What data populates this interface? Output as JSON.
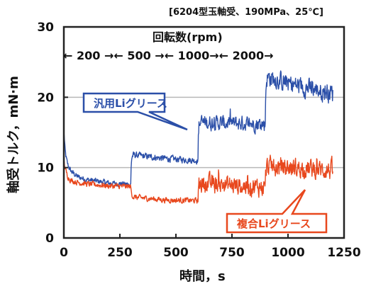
{
  "chart_data": {
    "type": "line",
    "condition_note": "[6204型玉軸受、190MPa、25℃]",
    "xlabel": "時間，s",
    "ylabel": "軸受トルク，mN·m",
    "xlim": [
      0,
      1250
    ],
    "ylim": [
      0,
      30
    ],
    "x_ticks": [
      "0",
      "250",
      "500",
      "750",
      "1000",
      "1250"
    ],
    "y_ticks": [
      "0",
      "10",
      "20",
      "30"
    ],
    "grid": "horizontal",
    "speed_header": "回転数(rpm)",
    "phases": [
      {
        "label": "200",
        "x_start": 0,
        "x_end": 300
      },
      {
        "label": "500",
        "x_start": 300,
        "x_end": 600
      },
      {
        "label": "1000",
        "x_start": 600,
        "x_end": 900
      },
      {
        "label": "2000",
        "x_start": 900,
        "x_end": 1200
      }
    ],
    "phase_row": "← 200 →← 500 →← 1000→← 2000→",
    "series": [
      {
        "name": "汎用Liグリース",
        "color": "#2b4fa8",
        "x": [
          0,
          5,
          15,
          30,
          60,
          100,
          200,
          299,
          300,
          310,
          450,
          599,
          600,
          610,
          750,
          899,
          900,
          905,
          1000,
          1100,
          1200
        ],
        "y": [
          15,
          12,
          10.5,
          9.5,
          8.7,
          8.3,
          7.8,
          7.6,
          11.6,
          11.8,
          11.3,
          11.0,
          16.5,
          16.4,
          16.3,
          16.2,
          22.5,
          22.9,
          22.0,
          21.2,
          20.6
        ],
        "noise": [
          0.6,
          0.6,
          0.6,
          0.6,
          0.6,
          0.6,
          0.6,
          0.6,
          0.7,
          0.7,
          0.7,
          0.7,
          1.6,
          1.6,
          1.6,
          1.6,
          2.0,
          2.0,
          2.0,
          2.0,
          2.0
        ]
      },
      {
        "name": "複合Liグリース",
        "color": "#e8481e",
        "x": [
          0,
          5,
          15,
          30,
          60,
          100,
          200,
          299,
          300,
          310,
          450,
          599,
          600,
          610,
          750,
          899,
          900,
          905,
          1000,
          1100,
          1200
        ],
        "y": [
          11,
          9.8,
          8.8,
          8.2,
          7.9,
          7.7,
          7.4,
          7.3,
          6.3,
          5.8,
          5.4,
          5.3,
          7.6,
          7.8,
          7.5,
          7.2,
          9.8,
          10.2,
          10.0,
          9.8,
          9.6
        ],
        "noise": [
          0.6,
          0.6,
          0.6,
          0.6,
          0.6,
          0.6,
          0.6,
          0.6,
          0.6,
          0.6,
          0.6,
          0.6,
          2.0,
          2.0,
          2.0,
          2.0,
          2.0,
          2.0,
          2.0,
          2.0,
          2.0
        ]
      }
    ]
  }
}
